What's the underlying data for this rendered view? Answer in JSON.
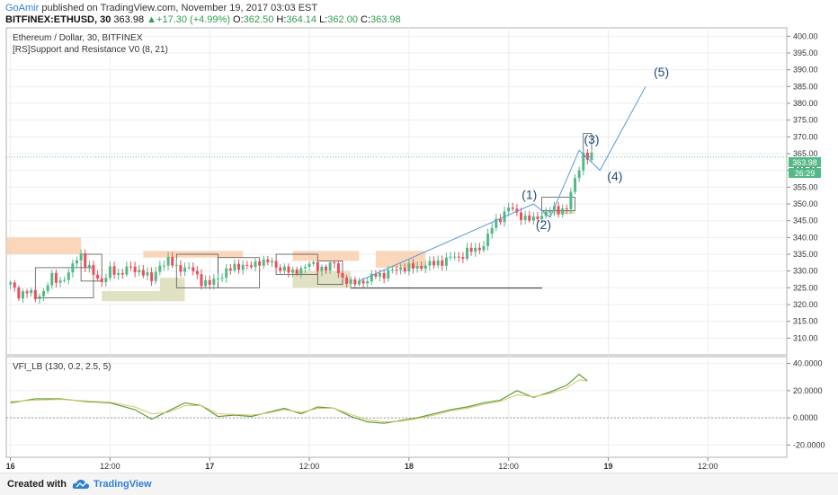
{
  "header": {
    "author": "GoAmir",
    "published_text": "published on TradingView.com, November 19, 2017 03:03 EST",
    "symbol": "BITFINEX:ETHUSD, 30",
    "last": "363.98",
    "change": "+17.30 (+4.99%)",
    "open_label": "O:",
    "open": "362.50",
    "high_label": "H:",
    "high": "364.14",
    "low_label": "L:",
    "low": "362.00",
    "close_label": "C:",
    "close": "363.98"
  },
  "price_pane": {
    "title": "Ethereum / Dollar, 30, BITFINEX",
    "indicator": "[RS]Support and Resistance V0 (8, 21)",
    "price_badge": "363.98",
    "timer_badge": "26:29"
  },
  "vfi_pane": {
    "title": "VFI_LB (130, 0.2, 2.5, 5)"
  },
  "footer": {
    "created_with": "Created with",
    "brand": "TradingView"
  },
  "colors": {
    "up": "#53b987",
    "down": "#eb4d5c",
    "wave": "#5b9bd5",
    "vfi": "#5a9e38",
    "signal": "#d9c46a",
    "resistance": "#f8c9a4",
    "support": "#dcdcb8",
    "wave_label": "#1f4e79"
  },
  "chart_data": [
    {
      "type": "candlestick",
      "title": "Ethereum / Dollar, 30, BITFINEX",
      "ylim": [
        305,
        402.5
      ],
      "y_ticks": [
        "310.00",
        "315.00",
        "320.00",
        "325.00",
        "330.00",
        "335.00",
        "340.00",
        "345.00",
        "350.00",
        "355.00",
        "360.00",
        "365.00",
        "370.00",
        "375.00",
        "380.00",
        "385.00",
        "390.00",
        "395.00",
        "400.00"
      ],
      "x_ticks": [
        {
          "label": "16",
          "hour": 0
        },
        {
          "label": "12:00",
          "hour": 12
        },
        {
          "label": "17",
          "hour": 24
        },
        {
          "label": "12:00",
          "hour": 36
        },
        {
          "label": "18",
          "hour": 48
        },
        {
          "label": "12:00",
          "hour": 60
        },
        {
          "label": "19",
          "hour": 72
        },
        {
          "label": "12:00",
          "hour": 84
        }
      ],
      "xlim_hours": [
        -0.5,
        93.5
      ],
      "candle_interval_hours": 0.5,
      "anchors": [
        [
          0,
          326
        ],
        [
          1,
          323
        ],
        [
          2,
          324
        ],
        [
          3,
          322
        ],
        [
          4,
          324
        ],
        [
          5,
          328
        ],
        [
          6,
          327
        ],
        [
          7,
          329
        ],
        [
          8,
          334
        ],
        [
          8.5,
          335
        ],
        [
          9,
          332
        ],
        [
          10,
          329
        ],
        [
          11,
          327
        ],
        [
          12,
          330
        ],
        [
          13,
          329
        ],
        [
          14,
          331
        ],
        [
          15,
          330
        ],
        [
          16,
          330
        ],
        [
          17,
          327
        ],
        [
          18,
          332
        ],
        [
          19,
          333
        ],
        [
          20,
          331
        ],
        [
          21,
          331
        ],
        [
          22,
          330
        ],
        [
          23,
          327
        ],
        [
          24,
          326
        ],
        [
          25,
          328
        ],
        [
          26,
          330
        ],
        [
          27,
          331
        ],
        [
          28,
          332
        ],
        [
          29,
          331
        ],
        [
          30,
          333
        ],
        [
          31,
          333
        ],
        [
          32,
          331
        ],
        [
          33,
          331
        ],
        [
          34,
          329
        ],
        [
          35,
          331
        ],
        [
          36,
          332
        ],
        [
          37,
          331
        ],
        [
          38,
          331
        ],
        [
          39,
          332
        ],
        [
          40,
          328
        ],
        [
          41,
          326
        ],
        [
          42,
          327
        ],
        [
          43,
          327
        ],
        [
          44,
          329
        ],
        [
          45,
          329
        ],
        [
          46,
          330
        ],
        [
          47,
          331
        ],
        [
          48,
          331
        ],
        [
          49,
          331
        ],
        [
          50,
          332
        ],
        [
          51,
          332
        ],
        [
          52,
          333
        ],
        [
          53,
          334
        ],
        [
          54,
          334
        ],
        [
          55,
          336
        ],
        [
          56,
          336
        ],
        [
          57,
          338
        ],
        [
          58,
          343
        ],
        [
          59,
          346
        ],
        [
          60,
          349
        ],
        [
          61,
          347
        ],
        [
          62,
          346
        ],
        [
          63,
          345
        ],
        [
          64,
          347
        ],
        [
          65,
          348
        ],
        [
          66,
          348
        ],
        [
          67,
          349
        ],
        [
          68,
          357
        ],
        [
          69,
          365
        ],
        [
          69.5,
          364
        ],
        [
          70,
          364
        ]
      ],
      "resistance_zones": [
        [
          -0.5,
          8.5,
          335,
          340
        ],
        [
          16,
          28,
          334,
          336
        ],
        [
          34,
          42,
          333,
          336
        ],
        [
          44,
          50,
          331,
          336
        ]
      ],
      "support_zones": [
        [
          11,
          18,
          321,
          324
        ],
        [
          18,
          21,
          321,
          328
        ],
        [
          34,
          41,
          325,
          330
        ],
        [
          64,
          68,
          347,
          348
        ]
      ],
      "range_boxes": [
        [
          3,
          10,
          322,
          331
        ],
        [
          8.5,
          11,
          327,
          335
        ],
        [
          20,
          25,
          325,
          335
        ],
        [
          25,
          30,
          325,
          334
        ],
        [
          32,
          37,
          329,
          335
        ],
        [
          37,
          40,
          326,
          333
        ],
        [
          41,
          64,
          325,
          325
        ],
        [
          64,
          68,
          348,
          352
        ],
        [
          69,
          70,
          364,
          371
        ]
      ],
      "elliott_path": [
        [
          42,
          327
        ],
        [
          63,
          350
        ],
        [
          65,
          346
        ],
        [
          68.5,
          366
        ],
        [
          71,
          360
        ],
        [
          76.5,
          385
        ]
      ],
      "wave_labels": [
        {
          "text": "(1)",
          "hour": 62.5,
          "price": 351.5
        },
        {
          "text": "(2)",
          "hour": 64.2,
          "price": 342.5
        },
        {
          "text": "(3)",
          "hour": 70,
          "price": 368
        },
        {
          "text": "(4)",
          "hour": 72.8,
          "price": 357
        },
        {
          "text": "(5)",
          "hour": 78.4,
          "price": 388
        }
      ],
      "last_price": 363.98
    },
    {
      "type": "line",
      "title": "VFI_LB (130, 0.2, 2.5, 5)",
      "ylim": [
        -29,
        45
      ],
      "y_ticks": [
        "-20.0000",
        "0.0000",
        "20.0000",
        "40.0000"
      ],
      "series": [
        {
          "values": [
            [
              0,
              11
            ],
            [
              3,
              14
            ],
            [
              6,
              14
            ],
            [
              9,
              12
            ],
            [
              12,
              11
            ],
            [
              15,
              6
            ],
            [
              17,
              -1
            ],
            [
              19,
              5
            ],
            [
              21,
              11
            ],
            [
              23,
              9
            ],
            [
              25,
              1
            ],
            [
              27,
              2
            ],
            [
              29,
              1
            ],
            [
              31,
              4
            ],
            [
              33,
              7
            ],
            [
              35,
              3
            ],
            [
              37,
              8
            ],
            [
              39,
              7
            ],
            [
              41,
              1
            ],
            [
              43,
              -3
            ],
            [
              45,
              -4
            ],
            [
              47,
              -2
            ],
            [
              49,
              0
            ],
            [
              51,
              3
            ],
            [
              53,
              6
            ],
            [
              55,
              8
            ],
            [
              57,
              11
            ],
            [
              59,
              13
            ],
            [
              61,
              20
            ],
            [
              63,
              15
            ],
            [
              65,
              19
            ],
            [
              67,
              24
            ],
            [
              68.5,
              32
            ],
            [
              69.5,
              27
            ]
          ]
        },
        {
          "values": [
            [
              0,
              12
            ],
            [
              3,
              13
            ],
            [
              6,
              13.5
            ],
            [
              9,
              12.5
            ],
            [
              12,
              11.5
            ],
            [
              15,
              8
            ],
            [
              17,
              3
            ],
            [
              19,
              4
            ],
            [
              21,
              9
            ],
            [
              23,
              9
            ],
            [
              25,
              3
            ],
            [
              27,
              2.5
            ],
            [
              29,
              2
            ],
            [
              31,
              3.5
            ],
            [
              33,
              6
            ],
            [
              35,
              4
            ],
            [
              37,
              7
            ],
            [
              39,
              7
            ],
            [
              41,
              2.5
            ],
            [
              43,
              -1.5
            ],
            [
              45,
              -3
            ],
            [
              47,
              -2.5
            ],
            [
              49,
              -0.5
            ],
            [
              51,
              2
            ],
            [
              53,
              5
            ],
            [
              55,
              7
            ],
            [
              57,
              10
            ],
            [
              59,
              12
            ],
            [
              61,
              17
            ],
            [
              63,
              15.5
            ],
            [
              65,
              18
            ],
            [
              67,
              22
            ],
            [
              68.5,
              28
            ],
            [
              69.5,
              27
            ]
          ]
        }
      ],
      "zero_line": true
    }
  ]
}
